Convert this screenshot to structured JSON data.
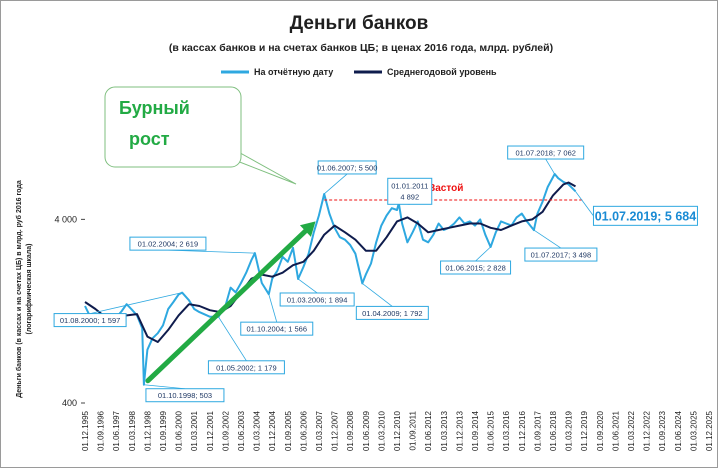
{
  "chart_data": {
    "type": "line",
    "title": "Деньги банков",
    "subtitle": "(в кассах банков и на счетах банков ЦБ; в ценах 2016 года, млрд. рублей)",
    "ylabel_lines": [
      "Деньги банков (в кассах  и на счетах  ЦБ) в млрд.  руб 2016 года",
      "(логарифмическая   шкала)"
    ],
    "yscale": "log",
    "ylim": [
      400,
      20000
    ],
    "y_ticks": [
      400,
      4000
    ],
    "y_tick_labels": [
      "400",
      "4 000"
    ],
    "x_tick_labels": [
      "01.12.1995",
      "01.09.1996",
      "01.06.1997",
      "01.03.1998",
      "01.12.1998",
      "01.09.1999",
      "01.06.2000",
      "01.03.2001",
      "01.12.2001",
      "01.09.2002",
      "01.06.2003",
      "01.03.2004",
      "01.12.2004",
      "01.09.2005",
      "01.06.2006",
      "01.03.2007",
      "01.12.2007",
      "01.09.2008",
      "01.06.2009",
      "01.03.2010",
      "01.12.2010",
      "01.09.2011",
      "01.06.2012",
      "01.03.2013",
      "01.12.2013",
      "01.09.2014",
      "01.06.2015",
      "01.03.2016",
      "01.12.2016",
      "01.09.2017",
      "01.06.2018",
      "01.03.2019",
      "01.12.2019",
      "01.09.2020",
      "01.06.2021",
      "01.03.2022",
      "01.12.2022",
      "01.09.2023",
      "01.06.2024",
      "01.03.2025",
      "01.12.2025"
    ],
    "grid": false,
    "legend_position": "top",
    "series": [
      {
        "name": "На отчётную дату",
        "color": "#2ea8e0",
        "points": [
          [
            "1995-12-01",
            1350
          ],
          [
            "1996-03-01",
            1180
          ],
          [
            "1996-06-01",
            1050
          ],
          [
            "1996-09-01",
            1100
          ],
          [
            "1996-12-01",
            1150
          ],
          [
            "1997-03-01",
            1120
          ],
          [
            "1997-06-01",
            1170
          ],
          [
            "1997-09-01",
            1260
          ],
          [
            "1997-12-01",
            1380
          ],
          [
            "1998-03-01",
            1290
          ],
          [
            "1998-06-01",
            1200
          ],
          [
            "1998-09-01",
            1020
          ],
          [
            "1998-10-01",
            503
          ],
          [
            "1998-12-01",
            780
          ],
          [
            "1999-03-01",
            900
          ],
          [
            "1999-06-01",
            960
          ],
          [
            "1999-09-01",
            1060
          ],
          [
            "1999-12-01",
            1300
          ],
          [
            "2000-03-01",
            1420
          ],
          [
            "2000-06-01",
            1560
          ],
          [
            "2000-08-01",
            1597
          ],
          [
            "2000-12-01",
            1450
          ],
          [
            "2001-03-01",
            1300
          ],
          [
            "2001-06-01",
            1250
          ],
          [
            "2001-12-01",
            1180
          ],
          [
            "2002-05-01",
            1179
          ],
          [
            "2002-09-01",
            1350
          ],
          [
            "2002-12-01",
            1700
          ],
          [
            "2003-03-01",
            1600
          ],
          [
            "2003-06-01",
            1800
          ],
          [
            "2003-09-01",
            2050
          ],
          [
            "2003-12-01",
            2400
          ],
          [
            "2004-02-01",
            2619
          ],
          [
            "2004-06-01",
            1800
          ],
          [
            "2004-10-01",
            1566
          ],
          [
            "2004-12-01",
            1900
          ],
          [
            "2005-03-01",
            2100
          ],
          [
            "2005-06-01",
            2500
          ],
          [
            "2005-09-01",
            2350
          ],
          [
            "2005-12-01",
            2800
          ],
          [
            "2006-03-01",
            1894
          ],
          [
            "2006-06-01",
            2200
          ],
          [
            "2006-09-01",
            2600
          ],
          [
            "2006-12-01",
            3400
          ],
          [
            "2007-03-01",
            4200
          ],
          [
            "2007-06-01",
            5500
          ],
          [
            "2007-09-01",
            4300
          ],
          [
            "2007-12-01",
            3600
          ],
          [
            "2008-03-01",
            3200
          ],
          [
            "2008-06-01",
            3100
          ],
          [
            "2008-09-01",
            2900
          ],
          [
            "2008-12-01",
            2600
          ],
          [
            "2009-04-01",
            1792
          ],
          [
            "2009-06-01",
            2000
          ],
          [
            "2009-09-01",
            2300
          ],
          [
            "2009-12-01",
            3000
          ],
          [
            "2010-03-01",
            3700
          ],
          [
            "2010-06-01",
            4200
          ],
          [
            "2010-09-01",
            4600
          ],
          [
            "2010-12-01",
            4500
          ],
          [
            "2011-01-01",
            4892
          ],
          [
            "2011-03-01",
            3800
          ],
          [
            "2011-06-01",
            3000
          ],
          [
            "2011-09-01",
            3400
          ],
          [
            "2011-12-01",
            3900
          ],
          [
            "2012-03-01",
            3100
          ],
          [
            "2012-06-01",
            3000
          ],
          [
            "2012-09-01",
            3300
          ],
          [
            "2012-12-01",
            3800
          ],
          [
            "2013-03-01",
            3500
          ],
          [
            "2013-06-01",
            3600
          ],
          [
            "2013-09-01",
            3800
          ],
          [
            "2013-12-01",
            4100
          ],
          [
            "2014-03-01",
            3800
          ],
          [
            "2014-06-01",
            3900
          ],
          [
            "2014-09-01",
            3700
          ],
          [
            "2014-12-01",
            4000
          ],
          [
            "2015-03-01",
            3300
          ],
          [
            "2015-06-01",
            2828
          ],
          [
            "2015-09-01",
            3400
          ],
          [
            "2015-12-01",
            3900
          ],
          [
            "2016-03-01",
            3800
          ],
          [
            "2016-06-01",
            3700
          ],
          [
            "2016-09-01",
            4100
          ],
          [
            "2016-12-01",
            4300
          ],
          [
            "2017-03-01",
            3900
          ],
          [
            "2017-07-01",
            3498
          ],
          [
            "2017-09-01",
            4300
          ],
          [
            "2017-12-01",
            5000
          ],
          [
            "2018-03-01",
            6000
          ],
          [
            "2018-07-01",
            7062
          ],
          [
            "2018-09-01",
            6700
          ],
          [
            "2018-12-01",
            6400
          ],
          [
            "2019-03-01",
            6200
          ],
          [
            "2019-07-01",
            5684
          ]
        ]
      },
      {
        "name": "Среднегодовой уровень",
        "color": "#0f1c4d",
        "points": [
          [
            "1995-12-01",
            1420
          ],
          [
            "1996-06-01",
            1300
          ],
          [
            "1996-12-01",
            1170
          ],
          [
            "1997-06-01",
            1150
          ],
          [
            "1997-12-01",
            1200
          ],
          [
            "1998-06-01",
            1220
          ],
          [
            "1998-12-01",
            920
          ],
          [
            "1999-06-01",
            860
          ],
          [
            "1999-12-01",
            1000
          ],
          [
            "2000-06-01",
            1200
          ],
          [
            "2000-12-01",
            1380
          ],
          [
            "2001-06-01",
            1350
          ],
          [
            "2001-12-01",
            1280
          ],
          [
            "2002-06-01",
            1250
          ],
          [
            "2002-12-01",
            1350
          ],
          [
            "2003-06-01",
            1600
          ],
          [
            "2003-12-01",
            1900
          ],
          [
            "2004-06-01",
            2000
          ],
          [
            "2004-12-01",
            1950
          ],
          [
            "2005-06-01",
            2050
          ],
          [
            "2005-12-01",
            2250
          ],
          [
            "2006-06-01",
            2350
          ],
          [
            "2006-12-01",
            2700
          ],
          [
            "2007-06-01",
            3300
          ],
          [
            "2007-12-01",
            3700
          ],
          [
            "2008-06-01",
            3400
          ],
          [
            "2008-12-01",
            3100
          ],
          [
            "2009-06-01",
            2700
          ],
          [
            "2009-12-01",
            2700
          ],
          [
            "2010-06-01",
            3200
          ],
          [
            "2010-12-01",
            3900
          ],
          [
            "2011-06-01",
            4100
          ],
          [
            "2011-12-01",
            3800
          ],
          [
            "2012-06-01",
            3400
          ],
          [
            "2012-12-01",
            3500
          ],
          [
            "2013-06-01",
            3600
          ],
          [
            "2013-12-01",
            3700
          ],
          [
            "2014-06-01",
            3800
          ],
          [
            "2014-12-01",
            3800
          ],
          [
            "2015-06-01",
            3600
          ],
          [
            "2015-12-01",
            3500
          ],
          [
            "2016-06-01",
            3700
          ],
          [
            "2016-12-01",
            3900
          ],
          [
            "2017-06-01",
            4000
          ],
          [
            "2017-12-01",
            4400
          ],
          [
            "2018-06-01",
            5400
          ],
          [
            "2018-12-01",
            6200
          ],
          [
            "2019-03-01",
            6350
          ],
          [
            "2019-07-01",
            6050
          ]
        ]
      }
    ],
    "annotations": [
      {
        "date": "1998-10-01",
        "value": 503,
        "label": "01.10.1998;   503"
      },
      {
        "date": "2000-08-01",
        "value": 1597,
        "label": "01.08.2000;  1 597"
      },
      {
        "date": "2002-05-01",
        "value": 1179,
        "label": "01.05.2002;   1 179"
      },
      {
        "date": "2004-02-01",
        "value": 2619,
        "label": "01.02.2004;   2 619"
      },
      {
        "date": "2004-10-01",
        "value": 1566,
        "label": "01.10.2004;   1 566"
      },
      {
        "date": "2006-03-01",
        "value": 1894,
        "label": "01.03.2006;   1 894"
      },
      {
        "date": "2007-06-01",
        "value": 5500,
        "label": "01.06.2007;   5 500"
      },
      {
        "date": "2009-04-01",
        "value": 1792,
        "label": "01.04.2009;   1 792"
      },
      {
        "date": "2011-01-01",
        "value": 4892,
        "label_lines": [
          "01.01.2011",
          "4 892"
        ]
      },
      {
        "date": "2015-06-01",
        "value": 2828,
        "label": "01.06.2015;   2 828"
      },
      {
        "date": "2017-07-01",
        "value": 3498,
        "label": "01.07.2017;   3 498"
      },
      {
        "date": "2018-07-01",
        "value": 7062,
        "label": "01.07.2018;   7 062"
      },
      {
        "date": "2019-07-01",
        "value": 5684,
        "label": "01.07.2019;  5 684"
      }
    ],
    "trend_arrow": {
      "from": [
        "1998-10-01",
        503
      ],
      "to": [
        "2007-01-01",
        3900
      ],
      "color": "#22aa44"
    },
    "callout": {
      "lines": [
        "Бурный",
        "рост"
      ],
      "color": "#22aa44"
    },
    "stagnation": {
      "label": "Застой",
      "value": 5100,
      "from": "2007-06-01",
      "to": "2019-12-01",
      "color": "#ee1111"
    }
  }
}
